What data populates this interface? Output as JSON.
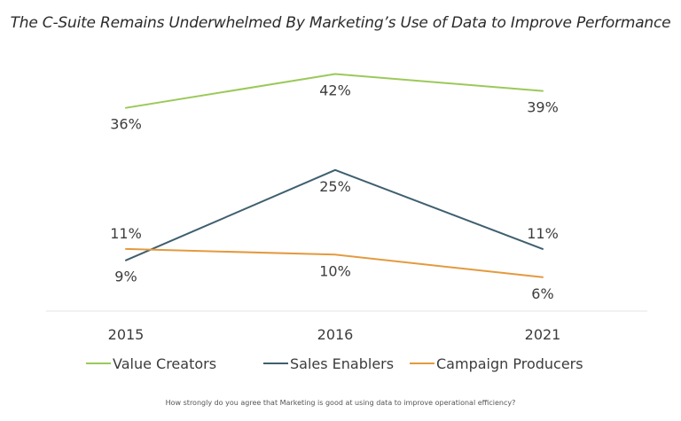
{
  "chart_data": {
    "type": "line",
    "title": "The C-Suite Remains Underwhelmed By Marketing’s Use of Data to Improve Performance",
    "categories": [
      "2015",
      "2016",
      "2021"
    ],
    "series": [
      {
        "name": "Value Creators",
        "values": [
          36,
          42,
          39
        ],
        "labels": [
          "36%",
          "42%",
          "39%"
        ],
        "color": "#9bc95a",
        "label_side": [
          "below",
          "below",
          "below"
        ]
      },
      {
        "name": "Sales Enablers",
        "values": [
          9,
          25,
          11
        ],
        "labels": [
          "9%",
          "25%",
          "11%"
        ],
        "color": "#3f5f6f",
        "label_side": [
          "below",
          "below",
          "above"
        ]
      },
      {
        "name": "Campaign Producers",
        "values": [
          11,
          10,
          6
        ],
        "labels": [
          "11%",
          "10%",
          "6%"
        ],
        "color": "#e39a3f",
        "label_side": [
          "above",
          "below",
          "below"
        ]
      }
    ],
    "ylim": [
      0,
      46
    ],
    "xlabel": "",
    "ylabel": "",
    "grid": false,
    "legend_position": "bottom"
  },
  "footnote": "How strongly do you agree that Marketing is good at using data to improve operational efficiency?"
}
